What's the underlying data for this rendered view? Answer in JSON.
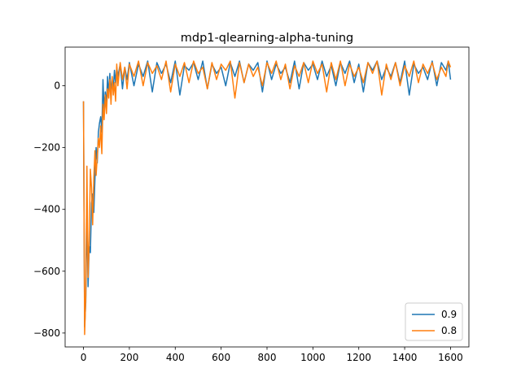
{
  "chart_data": {
    "type": "line",
    "title": "mdp1-qlearning-alpha-tuning",
    "xlabel": "",
    "ylabel": "",
    "xlim": [
      -80,
      1680
    ],
    "ylim": [
      -845,
      125
    ],
    "xticks": [
      0,
      200,
      400,
      600,
      800,
      1000,
      1200,
      1400,
      1600
    ],
    "xtick_labels": [
      "0",
      "200",
      "400",
      "600",
      "800",
      "1000",
      "1200",
      "1400",
      "1600"
    ],
    "yticks": [
      -800,
      -600,
      -400,
      -200,
      0
    ],
    "ytick_labels": [
      "−800",
      "−600",
      "−400",
      "−200",
      "0"
    ],
    "grid": false,
    "legend_position": "lower-right",
    "series": [
      {
        "name": "0.9",
        "color": "#1f77b4",
        "x": [
          0,
          5,
          10,
          15,
          20,
          25,
          30,
          35,
          40,
          45,
          50,
          55,
          60,
          65,
          70,
          75,
          80,
          85,
          90,
          95,
          100,
          105,
          110,
          115,
          120,
          125,
          130,
          135,
          140,
          145,
          150,
          160,
          170,
          180,
          190,
          200,
          220,
          240,
          260,
          280,
          300,
          320,
          340,
          360,
          380,
          400,
          420,
          440,
          460,
          480,
          500,
          520,
          540,
          560,
          580,
          600,
          620,
          640,
          660,
          680,
          700,
          720,
          740,
          760,
          780,
          800,
          820,
          840,
          860,
          880,
          900,
          920,
          940,
          960,
          980,
          1000,
          1020,
          1040,
          1060,
          1080,
          1100,
          1120,
          1140,
          1160,
          1180,
          1200,
          1220,
          1240,
          1260,
          1280,
          1300,
          1320,
          1340,
          1360,
          1380,
          1400,
          1420,
          1440,
          1460,
          1480,
          1500,
          1520,
          1540,
          1560,
          1580,
          1590,
          1600
        ],
        "values": [
          -50,
          -780,
          -700,
          -400,
          -650,
          -520,
          -540,
          -380,
          -350,
          -410,
          -300,
          -200,
          -250,
          -150,
          -120,
          -100,
          -150,
          20,
          -80,
          -20,
          -60,
          30,
          -30,
          40,
          -20,
          20,
          -10,
          50,
          10,
          60,
          30,
          70,
          -10,
          60,
          20,
          75,
          0,
          70,
          30,
          80,
          -20,
          75,
          40,
          70,
          10,
          80,
          -30,
          65,
          50,
          75,
          20,
          80,
          -10,
          70,
          40,
          60,
          0,
          75,
          30,
          80,
          10,
          70,
          50,
          75,
          -20,
          80,
          20,
          70,
          40,
          60,
          10,
          80,
          -10,
          75,
          50,
          70,
          20,
          80,
          30,
          65,
          0,
          75,
          40,
          80,
          10,
          70,
          -20,
          75,
          50,
          80,
          20,
          60,
          30,
          75,
          10,
          80,
          -30,
          70,
          40,
          60,
          20,
          80,
          0,
          75,
          50,
          80,
          20
        ]
      },
      {
        "name": "0.8",
        "color": "#ff7f0e",
        "x": [
          0,
          5,
          10,
          15,
          20,
          25,
          30,
          35,
          40,
          45,
          50,
          55,
          60,
          65,
          70,
          75,
          80,
          85,
          90,
          95,
          100,
          105,
          110,
          115,
          120,
          125,
          130,
          135,
          140,
          145,
          150,
          160,
          170,
          180,
          190,
          200,
          220,
          240,
          260,
          280,
          300,
          320,
          340,
          360,
          380,
          400,
          420,
          440,
          460,
          480,
          500,
          520,
          540,
          560,
          580,
          600,
          620,
          640,
          660,
          680,
          700,
          720,
          740,
          760,
          780,
          800,
          820,
          840,
          860,
          880,
          900,
          920,
          940,
          960,
          980,
          1000,
          1020,
          1040,
          1060,
          1080,
          1100,
          1120,
          1140,
          1160,
          1180,
          1200,
          1220,
          1240,
          1260,
          1280,
          1300,
          1320,
          1340,
          1360,
          1380,
          1400,
          1420,
          1440,
          1460,
          1480,
          1500,
          1520,
          1540,
          1560,
          1580,
          1590,
          1600
        ],
        "values": [
          -50,
          -805,
          -680,
          -260,
          -620,
          -500,
          -270,
          -330,
          -450,
          -300,
          -210,
          -290,
          -230,
          -170,
          -200,
          -130,
          -220,
          -60,
          -110,
          -30,
          -90,
          -10,
          -40,
          20,
          -60,
          30,
          -30,
          10,
          -50,
          70,
          0,
          75,
          20,
          60,
          -10,
          70,
          30,
          80,
          0,
          75,
          40,
          65,
          20,
          80,
          -20,
          70,
          30,
          75,
          10,
          80,
          40,
          60,
          -10,
          75,
          20,
          70,
          50,
          80,
          -40,
          75,
          10,
          70,
          30,
          60,
          0,
          75,
          40,
          80,
          20,
          70,
          -10,
          65,
          30,
          75,
          10,
          80,
          40,
          70,
          -20,
          75,
          20,
          80,
          0,
          70,
          30,
          60,
          10,
          75,
          40,
          80,
          -30,
          70,
          20,
          75,
          0,
          65,
          30,
          80,
          10,
          70,
          40,
          75,
          20,
          60,
          30,
          80,
          60
        ]
      }
    ]
  }
}
